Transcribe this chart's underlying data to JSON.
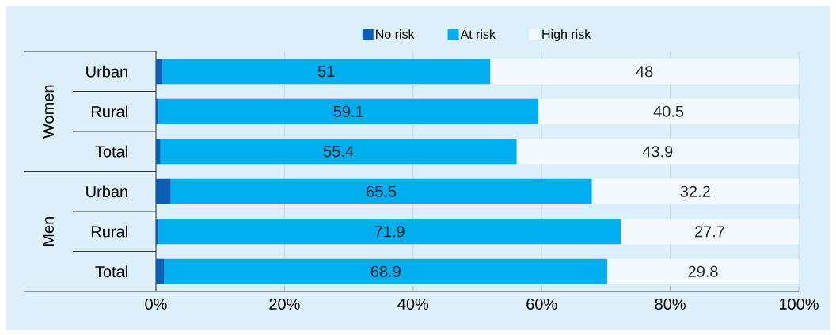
{
  "chart_data": {
    "type": "bar",
    "orientation": "horizontal",
    "stacked": true,
    "categories": [
      "Urban",
      "Rural",
      "Total",
      "Urban",
      "Rural",
      "Total"
    ],
    "series": [
      {
        "name": "No risk",
        "color": "#0a5fb4",
        "values": [
          1,
          0.4,
          0.7,
          2.3,
          0.4,
          1.3
        ]
      },
      {
        "name": "At risk",
        "color": "#00aeef",
        "values": [
          51,
          59.1,
          55.4,
          65.5,
          71.9,
          68.9
        ],
        "value_labels": [
          "51",
          "59.1",
          "55.4",
          "65.5",
          "71.9",
          "68.9"
        ]
      },
      {
        "name": "High risk",
        "color": "#f2f9fd",
        "values": [
          48,
          40.5,
          43.9,
          32.2,
          27.7,
          29.8
        ],
        "value_labels": [
          "48",
          "40.5",
          "43.9",
          "32.2",
          "27.7",
          "29.8"
        ]
      }
    ],
    "xlim": [
      0,
      100
    ],
    "xticks": [
      {
        "value": 0,
        "label": "0%"
      },
      {
        "value": 20,
        "label": "20%"
      },
      {
        "value": 40,
        "label": "40%"
      },
      {
        "value": 60,
        "label": "60%"
      },
      {
        "value": 80,
        "label": "80%"
      },
      {
        "value": 100,
        "label": "100%"
      }
    ],
    "grid": "x",
    "legend": "top",
    "annotations": [
      "Women",
      "Men"
    ]
  }
}
